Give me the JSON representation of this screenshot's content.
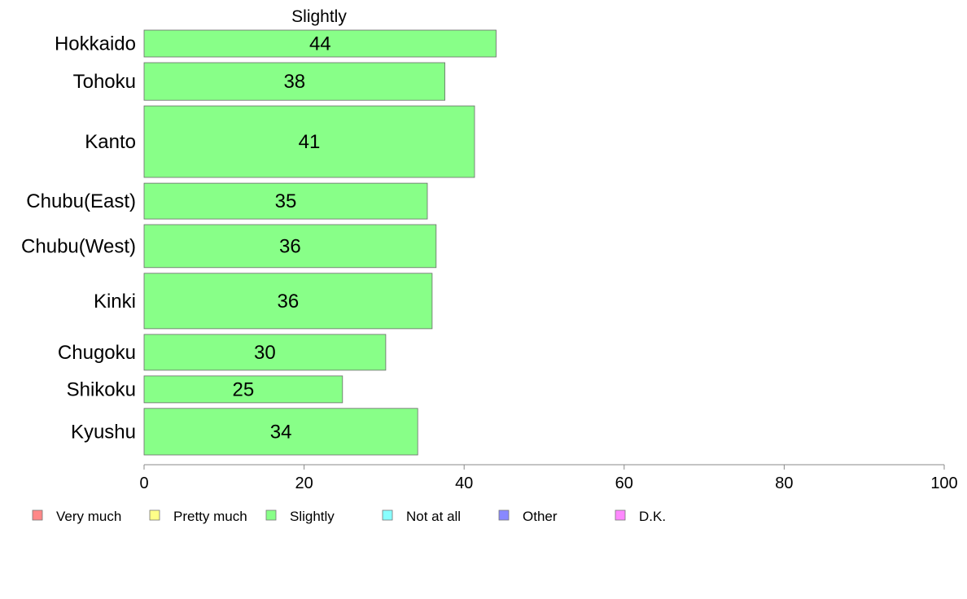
{
  "chart_data": {
    "type": "bar",
    "orientation": "horizontal",
    "title": "Slightly",
    "categories": [
      "Hokkaido",
      "Tohoku",
      "Kanto",
      "Chubu(East)",
      "Chubu(West)",
      "Kinki",
      "Chugoku",
      "Shikoku",
      "Kyushu"
    ],
    "series": [
      {
        "name": "Slightly",
        "values": [
          44,
          37.6,
          41.3,
          35.4,
          36.5,
          36,
          30.2,
          24.8,
          34.2
        ],
        "color": "#88ff88"
      }
    ],
    "value_labels": [
      "44",
      "38",
      "41",
      "35",
      "36",
      "36",
      "30",
      "25",
      "34"
    ],
    "bar_weights": [
      0.75,
      1.05,
      2.0,
      1.0,
      1.2,
      1.55,
      1.0,
      0.75,
      1.3
    ],
    "xlim": [
      0,
      100
    ],
    "xticks": [
      0,
      20,
      40,
      60,
      80,
      100
    ],
    "xlabel": "",
    "ylabel": "",
    "grid": false,
    "legend_position": "bottom",
    "legend": [
      {
        "label": "Very much",
        "color": "#ff8888"
      },
      {
        "label": "Pretty much",
        "color": "#ffff88"
      },
      {
        "label": "Slightly",
        "color": "#88ff88"
      },
      {
        "label": "Not at all",
        "color": "#88ffff"
      },
      {
        "label": "Other",
        "color": "#8888ff"
      },
      {
        "label": "D.K.",
        "color": "#ff88ff"
      }
    ]
  }
}
